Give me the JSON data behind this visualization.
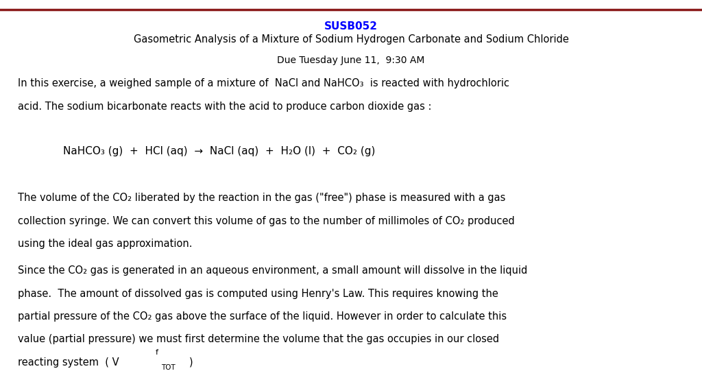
{
  "title_code": "SUSB052",
  "title_code_color": "#0000FF",
  "title_main": "Gasometric Analysis of a Mixture of Sodium Hydrogen Carbonate and Sodium Chloride",
  "due_date": "Due Tuesday June 11,  9:30 AM",
  "top_line_color": "#8B1A1A",
  "background_color": "#FFFFFF",
  "text_color": "#000000",
  "figsize": [
    10.24,
    5.57
  ],
  "dpi": 100,
  "fs_body": 10.5,
  "lm": 0.025
}
